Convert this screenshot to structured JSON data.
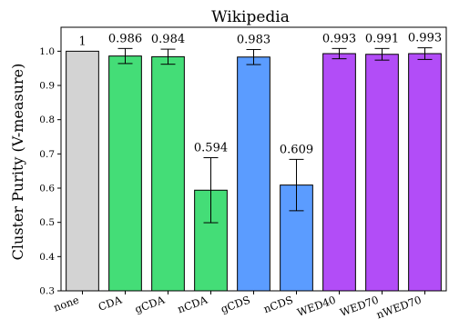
{
  "chart_data": {
    "type": "bar",
    "title": "Wikipedia",
    "ylabel": "Cluster Purity (V-measure)",
    "xlabel": "",
    "ylim": [
      0.3,
      1.07
    ],
    "yticks": [
      "0.3",
      "0.4",
      "0.5",
      "0.6",
      "0.7",
      "0.8",
      "0.9",
      "1.0"
    ],
    "grid": false,
    "categories": [
      "none",
      "CDA",
      "gCDA",
      "nCDA",
      "gCDS",
      "nCDS",
      "WED40",
      "WED70",
      "nWED70"
    ],
    "values": [
      1.0,
      0.986,
      0.984,
      0.594,
      0.983,
      0.609,
      0.993,
      0.991,
      0.993
    ],
    "value_labels": [
      "1",
      "0.986",
      "0.984",
      "0.594",
      "0.983",
      "0.609",
      "0.993",
      "0.991",
      "0.993"
    ],
    "errors": [
      0,
      0.022,
      0.022,
      0.095,
      0.022,
      0.075,
      0.015,
      0.017,
      0.017
    ],
    "colors": [
      "#d3d3d3",
      "#44dd77",
      "#44dd77",
      "#44dd77",
      "#5b9cff",
      "#5b9cff",
      "#b24df7",
      "#b24df7",
      "#b24df7"
    ]
  }
}
